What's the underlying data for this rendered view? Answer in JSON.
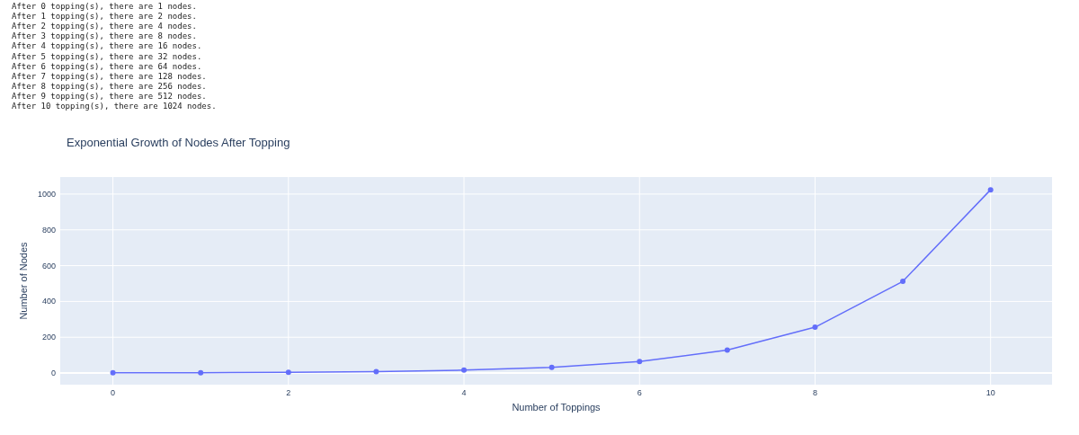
{
  "chart_data": {
    "type": "line",
    "title": "Exponential Growth of Nodes After Topping",
    "xlabel": "Number of Toppings",
    "ylabel": "Number of Nodes",
    "annotations": [
      "After 0 topping(s), there are 1 nodes.",
      "After 1 topping(s), there are 2 nodes.",
      "After 2 topping(s), there are 4 nodes.",
      "After 3 topping(s), there are 8 nodes.",
      "After 4 topping(s), there are 16 nodes.",
      "After 5 topping(s), there are 32 nodes.",
      "After 6 topping(s), there are 64 nodes.",
      "After 7 topping(s), there are 128 nodes.",
      "After 8 topping(s), there are 256 nodes.",
      "After 9 topping(s), there are 512 nodes.",
      "After 10 topping(s), there are 1024 nodes."
    ],
    "x": [
      0,
      1,
      2,
      3,
      4,
      5,
      6,
      7,
      8,
      9,
      10
    ],
    "series": [
      {
        "color": "#636efa",
        "values": [
          1,
          2,
          4,
          8,
          16,
          32,
          64,
          128,
          256,
          512,
          1024
        ]
      }
    ],
    "xlim": [
      -0.6,
      10.7
    ],
    "ylim": [
      -65,
      1095
    ],
    "xticks": [
      0,
      2,
      4,
      6,
      8,
      10
    ],
    "yticks": [
      0,
      200,
      400,
      600,
      800,
      1000
    ],
    "grid": true,
    "marker": "circle",
    "line_style": "solid"
  }
}
